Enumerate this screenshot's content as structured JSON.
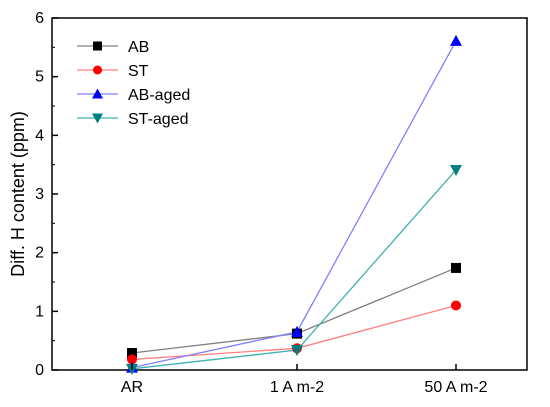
{
  "chart_data": {
    "type": "line",
    "title": "",
    "xlabel": "",
    "ylabel": "Diff. H content (ppm)",
    "categories": [
      "AR",
      "1 A m-2",
      "50 A m-2"
    ],
    "ylim": [
      0,
      6
    ],
    "yticks": [
      0,
      1,
      2,
      3,
      4,
      5,
      6
    ],
    "legend_position": "top-left",
    "grid": false,
    "series": [
      {
        "name": "AB",
        "marker": "square",
        "marker_color": "#000000",
        "line_color": "#808080",
        "values": [
          0.29,
          0.62,
          1.74
        ]
      },
      {
        "name": "ST",
        "marker": "circle",
        "marker_color": "#ff0000",
        "line_color": "#ff8080",
        "values": [
          0.18,
          0.37,
          1.1
        ]
      },
      {
        "name": "AB-aged",
        "marker": "triangle-up",
        "marker_color": "#0000ff",
        "line_color": "#8080ff",
        "values": [
          0.04,
          0.65,
          5.61
        ]
      },
      {
        "name": "ST-aged",
        "marker": "triangle-down",
        "marker_color": "#008080",
        "line_color": "#40b0b0",
        "values": [
          0.02,
          0.34,
          3.41
        ]
      }
    ]
  }
}
